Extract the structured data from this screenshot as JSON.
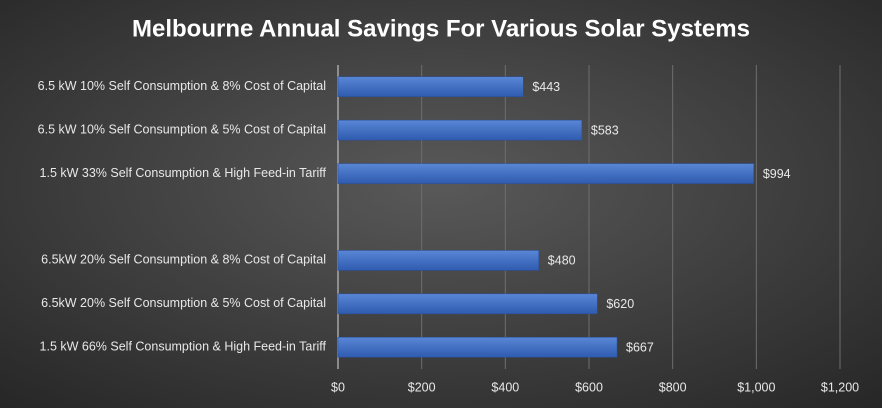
{
  "chart_data": {
    "type": "bar",
    "orientation": "horizontal",
    "title": "Melbourne Annual Savings For Various Solar Systems",
    "categories": [
      "6.5 kW 10% Self Consumption & 8% Cost of Capital",
      "6.5 kW 10% Self Consumption & 5% Cost of Capital",
      "1.5 kW 33% Self Consumption & High Feed-in Tariff",
      null,
      "6.5kW 20% Self Consumption & 8% Cost of Capital",
      "6.5kW 20% Self Consumption & 5% Cost of Capital",
      "1.5 kW 66% Self Consumption & High Feed-in Tariff"
    ],
    "values": [
      443,
      583,
      994,
      null,
      480,
      620,
      667
    ],
    "value_labels": [
      "$443",
      "$583",
      "$994",
      null,
      "$480",
      "$620",
      "$667"
    ],
    "color": "#4472c4",
    "xlim": [
      0,
      1200
    ],
    "xticks": [
      {
        "value": 0,
        "label": "$0"
      },
      {
        "value": 200,
        "label": "$200"
      },
      {
        "value": 400,
        "label": "$400"
      },
      {
        "value": 600,
        "label": "$600"
      },
      {
        "value": 800,
        "label": "$800"
      },
      {
        "value": 1000,
        "label": "$1,000"
      },
      {
        "value": 1200,
        "label": "$1,200"
      }
    ],
    "grid": true
  }
}
